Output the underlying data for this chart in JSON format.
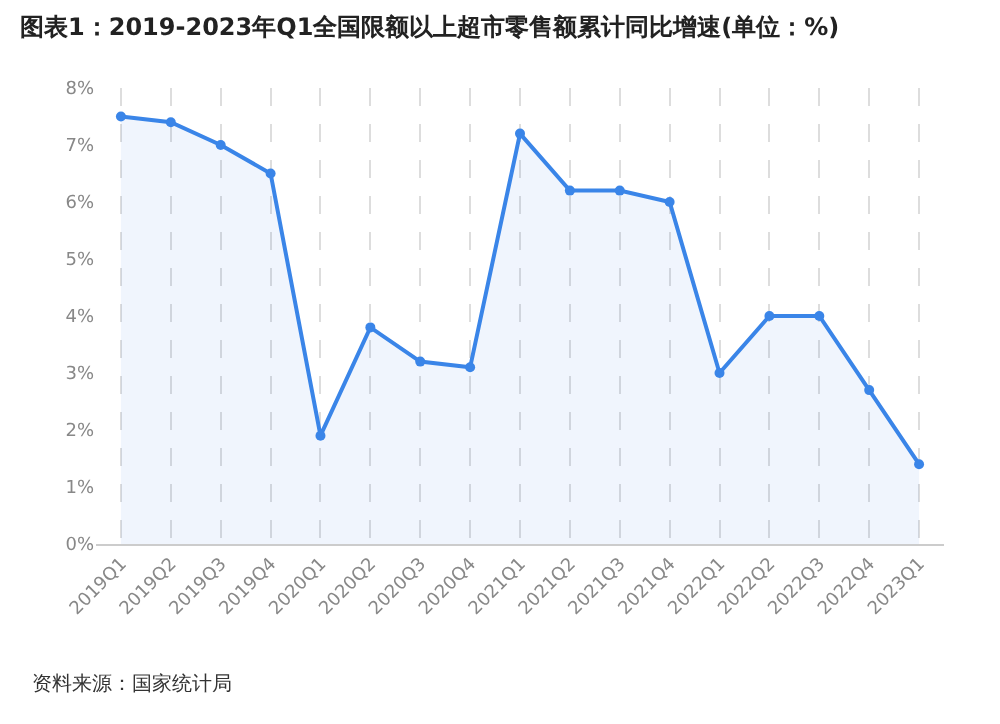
{
  "chart_data": {
    "type": "area",
    "title": "图表1：2019-2023年Q1全国限额以上超市零售额累计同比增速(单位：%)",
    "categories": [
      "2019Q1",
      "2019Q2",
      "2019Q3",
      "2019Q4",
      "2020Q1",
      "2020Q2",
      "2020Q3",
      "2020Q4",
      "2021Q1",
      "2021Q2",
      "2021Q3",
      "2021Q4",
      "2022Q1",
      "2022Q2",
      "2022Q3",
      "2022Q4",
      "2023Q1"
    ],
    "series": [
      {
        "color": "#3a85e8",
        "values": [
          7.5,
          7.4,
          7.0,
          6.5,
          1.9,
          3.8,
          3.2,
          3.1,
          7.2,
          6.2,
          6.2,
          6.0,
          3.0,
          4.0,
          4.0,
          2.7,
          1.4
        ]
      }
    ],
    "ylim": [
      0,
      8
    ],
    "yticks": [
      {
        "value": 0,
        "label": "0%"
      },
      {
        "value": 1,
        "label": "1%"
      },
      {
        "value": 2,
        "label": "2%"
      },
      {
        "value": 3,
        "label": "3%"
      },
      {
        "value": 4,
        "label": "4%"
      },
      {
        "value": 5,
        "label": "5%"
      },
      {
        "value": 6,
        "label": "6%"
      },
      {
        "value": 7,
        "label": "7%"
      },
      {
        "value": 8,
        "label": "8%"
      }
    ],
    "grid": "x",
    "marker": "circle",
    "line_style": "solid",
    "legend": false,
    "annotations": [
      "资料来源：国家统计局"
    ]
  }
}
